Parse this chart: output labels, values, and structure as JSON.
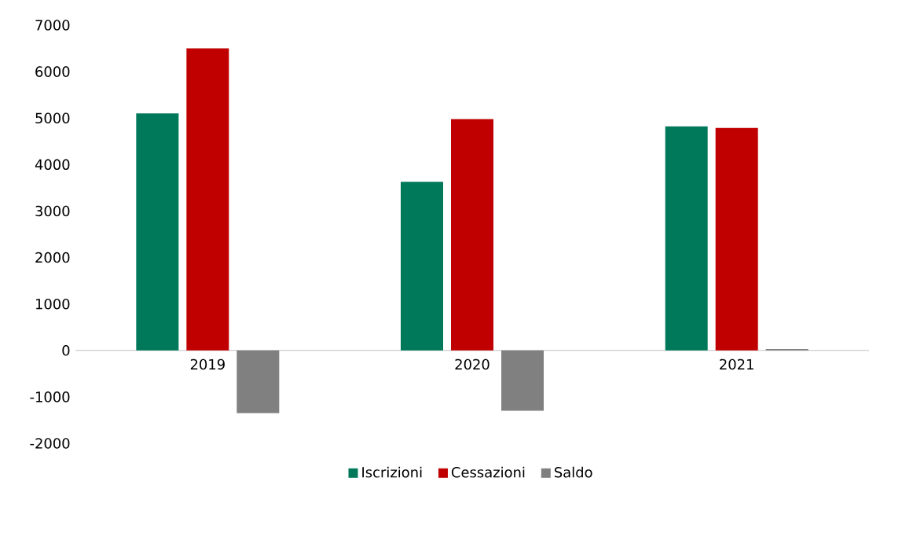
{
  "chart_data": {
    "type": "bar",
    "categories": [
      "2019",
      "2020",
      "2021"
    ],
    "series": [
      {
        "name": "Iscrizioni",
        "color": "#00785a",
        "values": [
          5100,
          3630,
          4820
        ]
      },
      {
        "name": "Cessazioni",
        "color": "#c00000",
        "values": [
          6500,
          4980,
          4790
        ]
      },
      {
        "name": "Saldo",
        "color": "#808080",
        "values": [
          -1350,
          -1300,
          30
        ]
      }
    ],
    "ylim": [
      -2000,
      7000
    ],
    "yticks": [
      -2000,
      -1000,
      0,
      1000,
      2000,
      3000,
      4000,
      5000,
      6000,
      7000
    ],
    "legend": "bottom"
  }
}
